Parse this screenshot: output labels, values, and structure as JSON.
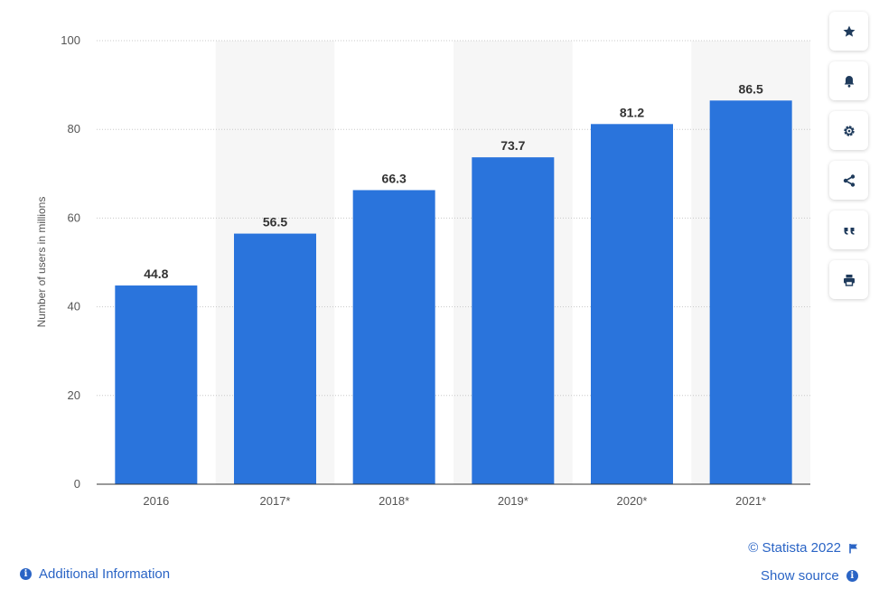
{
  "chart_data": {
    "type": "bar",
    "categories": [
      "2016",
      "2017*",
      "2018*",
      "2019*",
      "2020*",
      "2021*"
    ],
    "values": [
      44.8,
      56.5,
      66.3,
      73.7,
      81.2,
      86.5
    ],
    "value_labels": [
      "44.8",
      "56.5",
      "66.3",
      "73.7",
      "81.2",
      "86.5"
    ],
    "ylabel": "Number of users in millions",
    "xlabel": "",
    "ylim": [
      0,
      100
    ],
    "yticks": [
      "0",
      "20",
      "40",
      "60",
      "80",
      "100"
    ],
    "grid": true,
    "bar_color": "#2a74dc",
    "band_color": "#f6f6f6"
  },
  "toolbar": {
    "buttons": [
      "star-icon",
      "bell-icon",
      "gear-icon",
      "share-icon",
      "quote-icon",
      "print-icon"
    ]
  },
  "footer": {
    "additional_info": "Additional Information",
    "credit": "© Statista 2022",
    "show_source": "Show source",
    "info_glyph": "i"
  },
  "colors": {
    "accent": "#2a64c5"
  }
}
